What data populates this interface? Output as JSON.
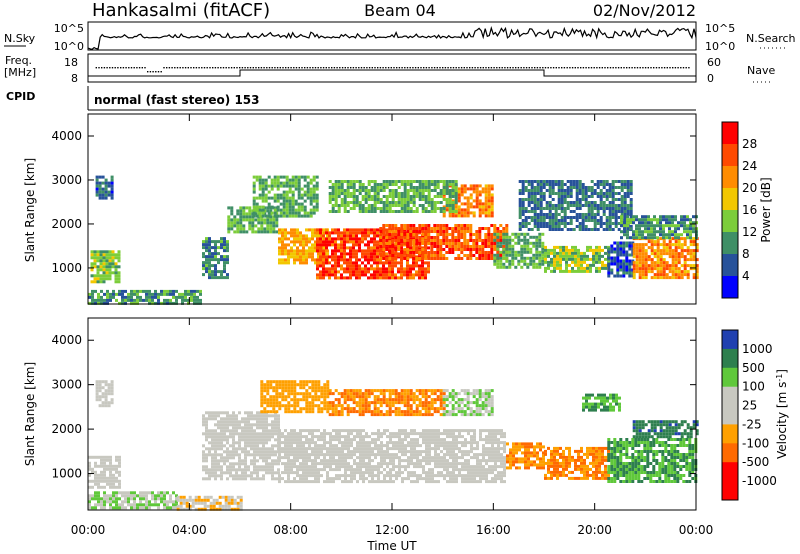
{
  "header": {
    "station": "Hankasalmi (fitACF)",
    "beam": "Beam 04",
    "date": "02/Nov/2012"
  },
  "top_panel": {
    "left_label": "N.Sky",
    "right_label": "N.Search",
    "left_ticks": [
      "10^5",
      "10^0"
    ],
    "right_ticks": [
      "10^5",
      "10^0"
    ]
  },
  "freq_panel": {
    "left_label_1": "Freq.",
    "left_label_2": "[MHz]",
    "left_ticks": [
      "18",
      "8"
    ],
    "right_label": "Nave",
    "right_ticks": [
      "60",
      "0"
    ]
  },
  "cpid_panel": {
    "label": "CPID",
    "text": "normal (fast stereo) 153"
  },
  "power_colorbar": {
    "label": "Power [dB]",
    "ticks": [
      "28",
      "24",
      "20",
      "16",
      "12",
      "8",
      "4"
    ],
    "colors": [
      "#ff0000",
      "#ff4a00",
      "#ff8c00",
      "#f2c700",
      "#7ccd3a",
      "#3f8f66",
      "#27529a",
      "#0000ff"
    ]
  },
  "velocity_colorbar": {
    "label": "Velocity [m s",
    "label_sup": "-1",
    "label_end": "]",
    "ticks": [
      "1000",
      "500",
      "100",
      "25",
      "-25",
      "-100",
      "-500",
      "-1000"
    ],
    "colors": [
      "#2040b0",
      "#2e7f4e",
      "#5fc83a",
      "#c8c8c0",
      "#c8c8c0",
      "#ffa000",
      "#ff6a00",
      "#ff0000"
    ]
  },
  "chart_data": [
    {
      "type": "heatmap",
      "name": "power",
      "ylabel": "Slant Range [km]",
      "yticks": [
        "4000",
        "3000",
        "2000",
        "1000"
      ],
      "ylim": [
        180,
        4500
      ],
      "xlim": [
        0,
        24
      ],
      "grid": false,
      "regions": [
        {
          "x0": 0.1,
          "x1": 1.2,
          "y0": 700,
          "y1": 1400,
          "level": 14
        },
        {
          "x0": 0.3,
          "x1": 1.0,
          "y0": 2600,
          "y1": 3100,
          "level": 7
        },
        {
          "x0": 0.0,
          "x1": 4.5,
          "y0": 200,
          "y1": 500,
          "level": 10
        },
        {
          "x0": 4.5,
          "x1": 5.5,
          "y0": 800,
          "y1": 1700,
          "level": 9
        },
        {
          "x0": 5.5,
          "x1": 7.5,
          "y0": 1800,
          "y1": 2400,
          "level": 12
        },
        {
          "x0": 6.5,
          "x1": 9.0,
          "y0": 2200,
          "y1": 3100,
          "level": 12
        },
        {
          "x0": 7.5,
          "x1": 9.5,
          "y0": 1100,
          "y1": 1900,
          "level": 20
        },
        {
          "x0": 9.0,
          "x1": 13.5,
          "y0": 800,
          "y1": 1900,
          "level": 27
        },
        {
          "x0": 11.5,
          "x1": 16.5,
          "y0": 1200,
          "y1": 2000,
          "level": 26
        },
        {
          "x0": 14.0,
          "x1": 16.0,
          "y0": 2200,
          "y1": 2900,
          "level": 23
        },
        {
          "x0": 9.5,
          "x1": 14.5,
          "y0": 2300,
          "y1": 3000,
          "level": 12
        },
        {
          "x0": 16.0,
          "x1": 18.0,
          "y0": 1000,
          "y1": 1800,
          "level": 12
        },
        {
          "x0": 18.0,
          "x1": 20.5,
          "y0": 900,
          "y1": 1500,
          "level": 14
        },
        {
          "x0": 17.0,
          "x1": 21.5,
          "y0": 1900,
          "y1": 3000,
          "level": 8
        },
        {
          "x0": 20.5,
          "x1": 21.5,
          "y0": 800,
          "y1": 1600,
          "level": 6
        },
        {
          "x0": 21.5,
          "x1": 24.0,
          "y0": 800,
          "y1": 1700,
          "level": 22
        },
        {
          "x0": 21.0,
          "x1": 24.0,
          "y0": 1700,
          "y1": 2200,
          "level": 10
        }
      ]
    },
    {
      "type": "heatmap",
      "name": "velocity",
      "ylabel": "Slant Range [km]",
      "yticks": [
        "4000",
        "3000",
        "2000",
        "1000"
      ],
      "xlabel": "Time UT",
      "xticks": [
        "00:00",
        "04:00",
        "08:00",
        "12:00",
        "16:00",
        "20:00",
        "00:00"
      ],
      "ylim": [
        180,
        4500
      ],
      "xlim": [
        0,
        24
      ],
      "grid": false,
      "regions": [
        {
          "x0": 0.0,
          "x1": 1.2,
          "y0": 700,
          "y1": 1400,
          "value": 0
        },
        {
          "x0": 0.3,
          "x1": 1.0,
          "y0": 2500,
          "y1": 3100,
          "value": 0
        },
        {
          "x0": 0.0,
          "x1": 3.5,
          "y0": 200,
          "y1": 600,
          "value": 60
        },
        {
          "x0": 3.5,
          "x1": 6.0,
          "y0": 200,
          "y1": 500,
          "value": -60
        },
        {
          "x0": 4.5,
          "x1": 7.5,
          "y0": 900,
          "y1": 2400,
          "value": 0
        },
        {
          "x0": 7.5,
          "x1": 16.5,
          "y0": 800,
          "y1": 2000,
          "value": 0
        },
        {
          "x0": 6.8,
          "x1": 9.5,
          "y0": 2400,
          "y1": 3100,
          "value": -200
        },
        {
          "x0": 9.5,
          "x1": 14.0,
          "y0": 2300,
          "y1": 2900,
          "value": -300
        },
        {
          "x0": 14.0,
          "x1": 16.0,
          "y0": 2300,
          "y1": 2900,
          "value": 60
        },
        {
          "x0": 16.5,
          "x1": 18.0,
          "y0": 1100,
          "y1": 1700,
          "value": -300
        },
        {
          "x0": 18.0,
          "x1": 20.5,
          "y0": 900,
          "y1": 1600,
          "value": -300
        },
        {
          "x0": 19.5,
          "x1": 21.0,
          "y0": 2400,
          "y1": 2800,
          "value": 300
        },
        {
          "x0": 20.5,
          "x1": 24.0,
          "y0": 800,
          "y1": 1800,
          "value": 300
        },
        {
          "x0": 21.5,
          "x1": 24.0,
          "y0": 1800,
          "y1": 2200,
          "value": 700
        }
      ]
    }
  ]
}
